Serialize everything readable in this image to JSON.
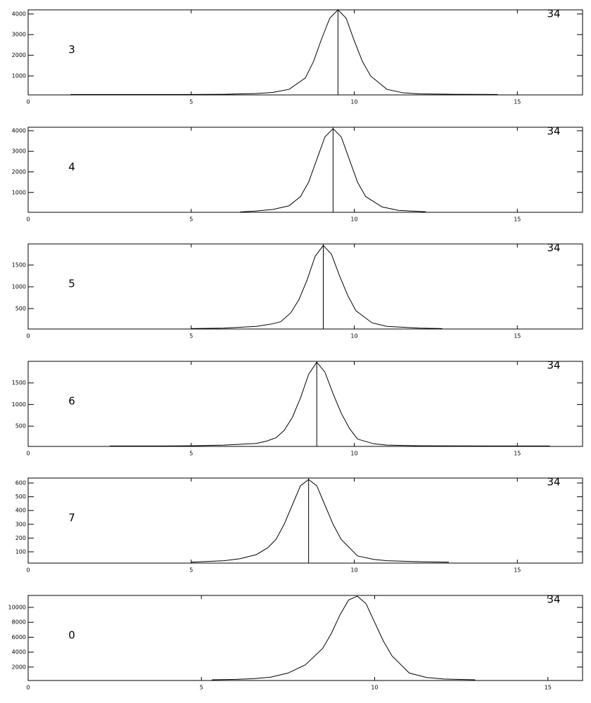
{
  "chart_data": [
    {
      "type": "line",
      "label": "3",
      "corner_label": "34",
      "color": "#000000",
      "marker_x": 9.5,
      "x": [
        1.3,
        2,
        3,
        4,
        5,
        6,
        7,
        7.5,
        8,
        8.5,
        8.75,
        9,
        9.25,
        9.5,
        9.75,
        10,
        10.25,
        10.5,
        11,
        11.5,
        12,
        13,
        14.4
      ],
      "values": [
        100,
        100,
        100,
        100,
        100,
        110,
        150,
        200,
        350,
        900,
        1700,
        2800,
        3800,
        4200,
        3800,
        2700,
        1700,
        1000,
        350,
        180,
        130,
        110,
        100
      ],
      "xlim": [
        0,
        17
      ],
      "xticks": [
        0,
        5,
        10,
        15
      ],
      "ylim": [
        80,
        4200
      ],
      "yticks": [
        1000,
        2000,
        3000,
        4000
      ]
    },
    {
      "type": "line",
      "label": "4",
      "corner_label": "34",
      "color": "#000000",
      "marker_x": 9.35,
      "x": [
        6.5,
        7,
        7.5,
        8,
        8.35,
        8.6,
        8.85,
        9.1,
        9.35,
        9.6,
        9.85,
        10.1,
        10.35,
        10.85,
        11.35,
        12.2
      ],
      "values": [
        50,
        100,
        170,
        350,
        800,
        1500,
        2600,
        3700,
        4100,
        3700,
        2600,
        1500,
        800,
        300,
        130,
        60
      ],
      "xlim": [
        0,
        17
      ],
      "xticks": [
        0,
        5,
        10,
        15
      ],
      "ylim": [
        35,
        4170
      ],
      "yticks": [
        1000,
        2000,
        3000,
        4000
      ]
    },
    {
      "type": "line",
      "label": "5",
      "corner_label": "34",
      "color": "#000000",
      "marker_x": 9.05,
      "x": [
        5,
        6,
        7,
        7.5,
        7.75,
        8.05,
        8.3,
        8.55,
        8.8,
        9.05,
        9.3,
        9.55,
        9.8,
        10.05,
        10.55,
        11,
        12,
        12.7
      ],
      "values": [
        40,
        50,
        90,
        150,
        200,
        400,
        700,
        1150,
        1700,
        1950,
        1750,
        1250,
        800,
        450,
        170,
        90,
        50,
        40
      ],
      "xlim": [
        0,
        17
      ],
      "xticks": [
        0,
        5,
        10,
        15
      ],
      "ylim": [
        30,
        1985
      ],
      "yticks": [
        500,
        1000,
        1500
      ]
    },
    {
      "type": "line",
      "label": "6",
      "corner_label": "34",
      "color": "#000000",
      "marker_x": 8.85,
      "x": [
        2.5,
        4,
        5,
        6,
        7,
        7.3,
        7.6,
        7.85,
        8.1,
        8.35,
        8.6,
        8.85,
        9.1,
        9.35,
        9.6,
        9.85,
        10.1,
        10.6,
        11,
        12,
        14,
        16
      ],
      "values": [
        40,
        40,
        45,
        60,
        100,
        150,
        230,
        400,
        700,
        1150,
        1700,
        1980,
        1750,
        1250,
        800,
        450,
        200,
        90,
        60,
        45,
        40,
        40
      ],
      "xlim": [
        0,
        17
      ],
      "xticks": [
        0,
        5,
        10,
        15
      ],
      "ylim": [
        30,
        2000
      ],
      "yticks": [
        500,
        1000,
        1500
      ]
    },
    {
      "type": "line",
      "label": "7",
      "corner_label": "34",
      "color": "#000000",
      "marker_x": 8.6,
      "x": [
        5,
        6,
        6.5,
        7,
        7.35,
        7.6,
        7.85,
        8.1,
        8.35,
        8.6,
        8.85,
        9.1,
        9.35,
        9.6,
        10.1,
        10.6,
        11,
        12,
        12.9
      ],
      "values": [
        25,
        35,
        50,
        80,
        130,
        190,
        300,
        440,
        580,
        625,
        580,
        440,
        300,
        190,
        70,
        45,
        35,
        28,
        25
      ],
      "xlim": [
        0,
        17
      ],
      "xticks": [
        0,
        5,
        10,
        15
      ],
      "ylim": [
        18,
        636
      ],
      "yticks": [
        100,
        200,
        300,
        400,
        500,
        600
      ]
    },
    {
      "type": "line",
      "label": "0",
      "corner_label": "34",
      "color": "#000000",
      "x": [
        5.3,
        6,
        6.5,
        7,
        7.5,
        8,
        8.5,
        8.75,
        9,
        9.25,
        9.5,
        9.75,
        10,
        10.25,
        10.5,
        11,
        11.5,
        12,
        12.9
      ],
      "values": [
        300,
        350,
        450,
        650,
        1200,
        2300,
        4500,
        6500,
        9000,
        11000,
        11500,
        10500,
        8000,
        5500,
        3500,
        1200,
        600,
        400,
        300
      ],
      "xlim": [
        0,
        16
      ],
      "xticks": [
        0,
        5,
        10,
        15
      ],
      "ylim": [
        200,
        11600
      ],
      "yticks": [
        2000,
        4000,
        6000,
        8000,
        10000
      ]
    }
  ]
}
